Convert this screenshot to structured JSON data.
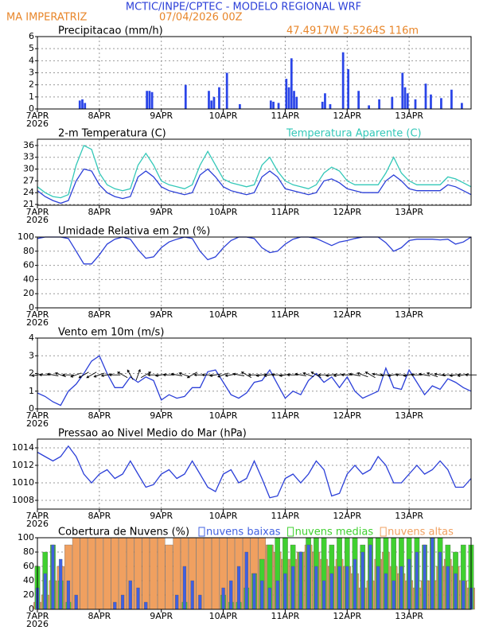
{
  "header": {
    "title": "MCTIC/INPE/CPTEC - MODELO REGIONAL WRF",
    "station": "MA IMPERATRIZ",
    "date": "07/04/2026 00Z",
    "coords": "47.4917W 5.5264S 116m"
  },
  "time_axis": {
    "xlim": [
      0,
      168
    ],
    "year": "2026",
    "xticks": [
      {
        "value": 0,
        "label": "7APR"
      },
      {
        "value": 24,
        "label": "8APR"
      },
      {
        "value": 48,
        "label": "9APR"
      },
      {
        "value": 72,
        "label": "10APR"
      },
      {
        "value": 96,
        "label": "11APR"
      },
      {
        "value": 120,
        "label": "12APR"
      },
      {
        "value": 144,
        "label": "13APR"
      }
    ],
    "x": [
      0,
      3,
      6,
      9,
      12,
      15,
      18,
      21,
      24,
      27,
      30,
      33,
      36,
      39,
      42,
      45,
      48,
      51,
      54,
      57,
      60,
      63,
      66,
      69,
      72,
      75,
      78,
      81,
      84,
      87,
      90,
      93,
      96,
      99,
      102,
      105,
      108,
      111,
      114,
      117,
      120,
      123,
      126,
      129,
      132,
      135,
      138,
      141,
      144,
      147,
      150,
      153,
      156,
      159,
      162,
      165,
      168
    ]
  },
  "chart_data": [
    {
      "type": "bar",
      "title": "Precipitacao (mm/h)",
      "color": "#2a45e8",
      "ylim": [
        0,
        6
      ],
      "yticks": [
        0,
        1,
        2,
        3,
        4,
        5,
        6
      ],
      "grid": true,
      "x": [
        16,
        17,
        18,
        42,
        43,
        44,
        57,
        66,
        67,
        68,
        70,
        73,
        78,
        90,
        91,
        93,
        96,
        97,
        98,
        99,
        100,
        110,
        111,
        113,
        118,
        120,
        124,
        128,
        132,
        137,
        141,
        142,
        143,
        146,
        150,
        152,
        156,
        160,
        164
      ],
      "values": [
        0.7,
        0.8,
        0.5,
        1.5,
        1.5,
        1.4,
        2.0,
        1.5,
        0.7,
        1.0,
        1.8,
        3.0,
        0.4,
        0.7,
        0.6,
        0.5,
        2.5,
        1.8,
        4.2,
        1.5,
        1.0,
        0.6,
        1.3,
        0.4,
        4.7,
        3.3,
        1.5,
        0.3,
        0.8,
        1.0,
        3.0,
        1.8,
        1.3,
        0.8,
        2.1,
        1.2,
        0.9,
        1.6,
        0.5
      ]
    },
    {
      "type": "line",
      "title": "2-m Temperatura (C)",
      "ylim": [
        20.8,
        37.6
      ],
      "yticks": [
        21,
        24,
        27,
        30,
        33,
        36
      ],
      "grid": true,
      "series": [
        {
          "color": "#2b3fd8",
          "values": [
            24.5,
            23,
            22,
            21.3,
            22,
            27,
            30,
            29.5,
            26,
            24,
            23,
            22.5,
            23,
            28,
            29.5,
            28,
            25.5,
            24.5,
            24,
            23.5,
            24,
            28.5,
            30,
            28,
            25.5,
            24.5,
            24,
            23.5,
            24,
            28,
            29.5,
            28,
            25,
            24.5,
            24,
            23.5,
            24,
            27,
            27.5,
            26.5,
            25,
            24.5,
            24,
            24,
            24,
            27,
            28.5,
            27,
            25,
            24.5,
            24.5,
            24.5,
            24.5,
            26,
            25.5,
            24.5,
            23.5
          ]
        },
        {
          "name": "Temperatura Aparente (C)",
          "color": "#33c8b8",
          "values": [
            25.5,
            24,
            23,
            22.7,
            23.5,
            31,
            36,
            35,
            29,
            26,
            25,
            24.5,
            25,
            31,
            34,
            31,
            27,
            26,
            25.5,
            25,
            26,
            31,
            34.5,
            31,
            27.5,
            26.5,
            26,
            25.5,
            26,
            31,
            33,
            29.5,
            27,
            26,
            25.5,
            25,
            26,
            29,
            30.5,
            29.5,
            27,
            26,
            26,
            26,
            26,
            29,
            33,
            29,
            27,
            26,
            26,
            26,
            26,
            28,
            27.5,
            26.5,
            25.5
          ]
        }
      ]
    },
    {
      "type": "line",
      "title": "Umidade Relativa em 2m (%)",
      "ylim": [
        0,
        100
      ],
      "yticks": [
        0,
        20,
        40,
        60,
        80,
        100
      ],
      "grid": true,
      "series": [
        {
          "color": "#2b3fd8",
          "values": [
            98,
            100,
            100,
            100,
            98,
            80,
            62,
            62,
            75,
            90,
            97,
            100,
            97,
            82,
            70,
            72,
            85,
            93,
            97,
            100,
            98,
            80,
            68,
            72,
            85,
            95,
            100,
            100,
            98,
            85,
            78,
            80,
            90,
            97,
            100,
            100,
            98,
            93,
            88,
            93,
            95,
            98,
            100,
            100,
            100,
            92,
            80,
            85,
            95,
            97,
            97,
            97,
            96,
            97,
            90,
            93,
            100
          ]
        }
      ]
    },
    {
      "type": "line",
      "title": "Vento em 10m (m/s)",
      "ylim": [
        0,
        4
      ],
      "yticks": [
        0,
        1,
        2,
        3,
        4
      ],
      "grid": true,
      "series": [
        {
          "color": "#2b3fd8",
          "values": [
            0.9,
            0.7,
            0.4,
            0.2,
            1.0,
            1.4,
            2.0,
            2.7,
            3.0,
            2.0,
            1.2,
            1.2,
            1.8,
            1.5,
            1.8,
            1.6,
            0.5,
            0.8,
            0.6,
            0.7,
            1.2,
            1.2,
            2.1,
            2.2,
            1.5,
            0.8,
            0.6,
            0.9,
            1.5,
            1.6,
            2.2,
            1.4,
            0.6,
            1.0,
            0.8,
            1.6,
            2.0,
            1.5,
            1.8,
            1.2,
            1.8,
            1.0,
            0.6,
            0.8,
            1.0,
            2.3,
            1.2,
            1.1,
            2.2,
            1.5,
            0.8,
            1.3,
            1.1,
            1.7,
            1.5,
            1.2,
            1.0
          ],
          "direction": [
            80,
            90,
            100,
            110,
            90,
            70,
            60,
            60,
            70,
            80,
            90,
            120,
            150,
            200,
            240,
            90,
            80,
            90,
            100,
            110,
            60,
            90,
            90,
            80,
            70,
            80,
            100,
            120,
            90,
            80,
            80,
            90,
            80,
            90,
            100,
            110,
            120,
            90,
            80,
            80,
            90,
            100,
            110,
            120,
            100,
            90,
            80,
            90,
            80,
            90,
            100,
            110,
            100,
            90,
            80,
            80,
            90
          ]
        }
      ]
    },
    {
      "type": "line",
      "title": "Pressao ao Nivel Medio do Mar (hPa)",
      "ylim": [
        1007,
        1015
      ],
      "yticks": [
        1008,
        1010,
        1012,
        1014
      ],
      "grid": true,
      "series": [
        {
          "color": "#2b3fd8",
          "values": [
            1013.5,
            1013,
            1012.5,
            1013,
            1014.2,
            1013,
            1011,
            1010,
            1011,
            1011.5,
            1010.5,
            1011,
            1012.5,
            1011,
            1009.5,
            1009.8,
            1011,
            1011.5,
            1010.5,
            1011,
            1012.5,
            1011,
            1009.5,
            1009,
            1011,
            1011.5,
            1010,
            1010.5,
            1012.5,
            1010.5,
            1008.3,
            1008.5,
            1010.5,
            1011,
            1010,
            1011,
            1012.5,
            1011.5,
            1008.5,
            1008.8,
            1011,
            1012,
            1011,
            1011.5,
            1013,
            1012,
            1010,
            1010,
            1011,
            1012,
            1011,
            1011.5,
            1012.5,
            1011.5,
            1009.5,
            1009.5,
            1010.5
          ]
        }
      ]
    },
    {
      "type": "bar",
      "title": "Cobertura de Nuvens (%)",
      "ylim": [
        0,
        100
      ],
      "yticks": [
        0,
        20,
        40,
        60,
        80,
        100
      ],
      "grid": true,
      "series": [
        {
          "name": "nuvens altas",
          "color": "#f0a060",
          "values": [
            10,
            20,
            40,
            60,
            90,
            100,
            100,
            100,
            100,
            100,
            100,
            100,
            100,
            100,
            100,
            100,
            100,
            90,
            100,
            100,
            100,
            100,
            100,
            100,
            100,
            100,
            100,
            100,
            100,
            100,
            90,
            80,
            70,
            70,
            80,
            90,
            80,
            70,
            60,
            70,
            60,
            50,
            30,
            40,
            70,
            80,
            60,
            50,
            40,
            30,
            40,
            40,
            60,
            70,
            60,
            40,
            30
          ]
        },
        {
          "name": "nuvens medias",
          "color": "#40d030",
          "values": [
            60,
            80,
            90,
            40,
            10,
            0,
            0,
            0,
            0,
            0,
            0,
            0,
            0,
            0,
            0,
            0,
            0,
            0,
            0,
            10,
            0,
            0,
            0,
            0,
            20,
            10,
            10,
            30,
            50,
            70,
            90,
            100,
            100,
            90,
            80,
            100,
            100,
            100,
            90,
            100,
            100,
            100,
            90,
            100,
            100,
            100,
            100,
            100,
            100,
            100,
            90,
            100,
            100,
            90,
            80,
            90,
            90
          ]
        },
        {
          "name": "nuvens baixas",
          "color": "#4060e0",
          "values": [
            30,
            50,
            90,
            70,
            40,
            20,
            0,
            0,
            0,
            0,
            10,
            20,
            40,
            30,
            10,
            0,
            0,
            0,
            20,
            60,
            40,
            20,
            0,
            0,
            30,
            40,
            60,
            80,
            50,
            40,
            30,
            40,
            50,
            60,
            80,
            90,
            60,
            40,
            50,
            60,
            60,
            70,
            80,
            90,
            60,
            50,
            40,
            60,
            70,
            80,
            90,
            100,
            80,
            60,
            50,
            40,
            30
          ]
        }
      ]
    }
  ]
}
